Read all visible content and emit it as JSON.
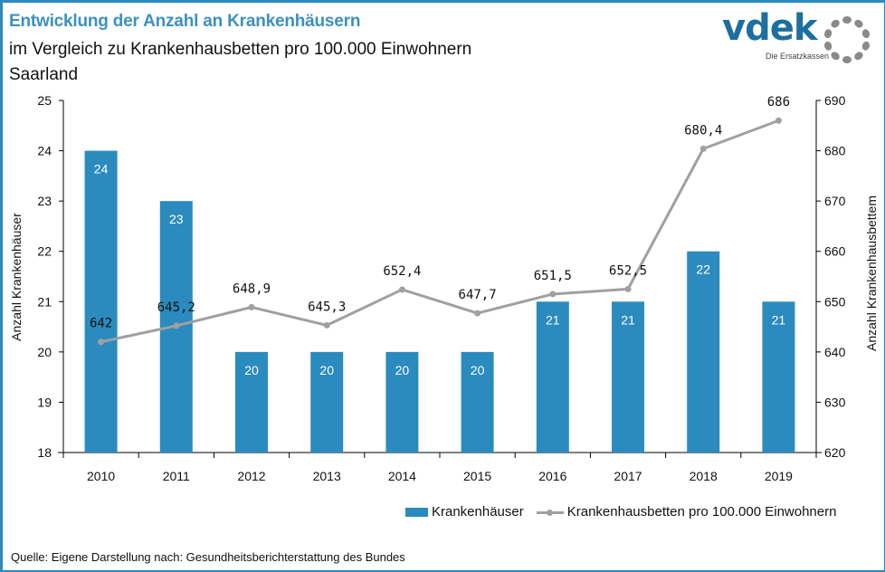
{
  "header": {
    "title": "Entwicklung der Anzahl an Krankenhäusern",
    "subtitle": "im Vergleich zu Krankenhausbetten  pro 100.000 Einwohnern",
    "region": "Saarland"
  },
  "logo": {
    "name": "vdek",
    "tagline": "Die Ersatzkassen"
  },
  "source": "Quelle: Eigene Darstellung nach: Gesundheitsberichterstattung  des Bundes",
  "colors": {
    "bar": "#2b8bbf",
    "line": "#a0a0a0",
    "title": "#3c91c0",
    "frame": "#2b8bbf"
  },
  "chart_data": {
    "type": "bar+line",
    "title": "Entwicklung der Anzahl an Krankenhäusern",
    "categories": [
      "2010",
      "2011",
      "2012",
      "2013",
      "2014",
      "2015",
      "2016",
      "2017",
      "2018",
      "2019"
    ],
    "series": [
      {
        "name": "Krankenhäuser",
        "type": "bar",
        "axis": "left",
        "values": [
          24,
          23,
          20,
          20,
          20,
          20,
          21,
          21,
          22,
          21
        ],
        "labels": [
          "24",
          "23",
          "20",
          "20",
          "20",
          "20",
          "21",
          "21",
          "22",
          "21"
        ]
      },
      {
        "name": "Krankenhausbetten pro 100.000 Einwohnern",
        "type": "line",
        "axis": "right",
        "values": [
          642,
          645.2,
          648.9,
          645.3,
          652.4,
          647.7,
          651.5,
          652.5,
          680.4,
          686
        ],
        "labels": [
          "642",
          "645,2",
          "648,9",
          "645,3",
          "652,4",
          "647,7",
          "651,5",
          "652,5",
          "680,4",
          "686"
        ]
      }
    ],
    "ylabel": "Anzahl Krankenhäuser",
    "y2label": "Anzahl Krankenhausbettem",
    "ylim": [
      18,
      25
    ],
    "yticks": [
      18,
      19,
      20,
      21,
      22,
      23,
      24,
      25
    ],
    "y2lim": [
      620,
      690
    ],
    "y2ticks": [
      620,
      630,
      640,
      650,
      660,
      670,
      680,
      690
    ],
    "legend": "bottom-right",
    "grid": false
  }
}
